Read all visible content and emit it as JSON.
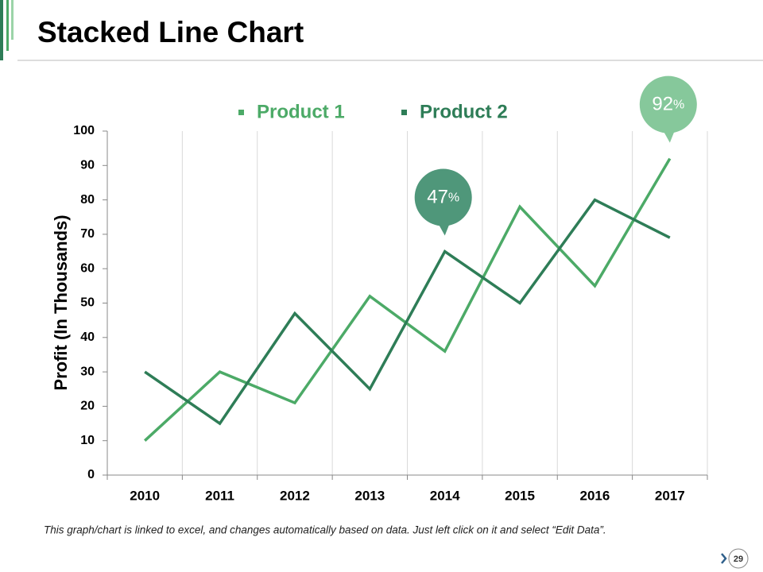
{
  "chart_data": {
    "type": "line",
    "title": "Stacked Line Chart",
    "y_label": "Profit (In Thousands)",
    "categories": [
      "2010",
      "2011",
      "2012",
      "2013",
      "2014",
      "2015",
      "2016",
      "2017"
    ],
    "series": [
      {
        "name": "Product 1",
        "color": "#4caa67",
        "values": [
          10,
          30,
          21,
          52,
          36,
          78,
          55,
          92
        ]
      },
      {
        "name": "Product 2",
        "color": "#2e7d57",
        "values": [
          30,
          15,
          47,
          25,
          65,
          50,
          80,
          69
        ]
      }
    ],
    "ylim": [
      0,
      100
    ],
    "yticks": [
      0,
      10,
      20,
      30,
      40,
      50,
      60,
      70,
      80,
      90,
      100
    ],
    "grid": true,
    "callouts": [
      {
        "x": "2014",
        "text": "47",
        "suffix": "%",
        "color": "#4f977a"
      },
      {
        "x": "2017",
        "text": "92",
        "suffix": "%",
        "color": "#86c89b"
      }
    ],
    "footnote": "This graph/chart is linked to excel, and changes automatically based on data. Just left click on it and select “Edit Data”.",
    "page_number": "29"
  }
}
